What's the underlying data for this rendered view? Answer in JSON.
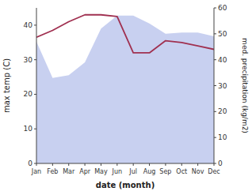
{
  "chart_data": {
    "type": "line",
    "xlabel": "date (month)",
    "ylabel": "max temp (C)",
    "y2label": "med. precipitation (kg/m2)",
    "categories": [
      "Jan",
      "Feb",
      "Mar",
      "Apr",
      "May",
      "Jun",
      "Jul",
      "Aug",
      "Sep",
      "Oct",
      "Nov",
      "Dec"
    ],
    "series": [
      {
        "type": "area",
        "axis": "y2",
        "color": "#c8d0f0",
        "values": [
          47.0,
          33.0,
          34.0,
          39.0,
          52.0,
          57.0,
          57.0,
          54.0,
          50.0,
          50.5,
          50.5,
          49.0
        ]
      },
      {
        "type": "line",
        "color": "#a03050",
        "values": [
          36.5,
          38.5,
          41.0,
          43.0,
          43.0,
          42.5,
          32.0,
          32.0,
          35.5,
          35.0,
          34.0,
          33.0
        ]
      }
    ],
    "ylim": [
      0,
      45
    ],
    "yticks": [
      0,
      10,
      20,
      30,
      40
    ],
    "y2lim": [
      0,
      60
    ],
    "y2ticks": [
      0,
      10,
      20,
      30,
      40,
      50,
      60
    ],
    "grid": false
  }
}
